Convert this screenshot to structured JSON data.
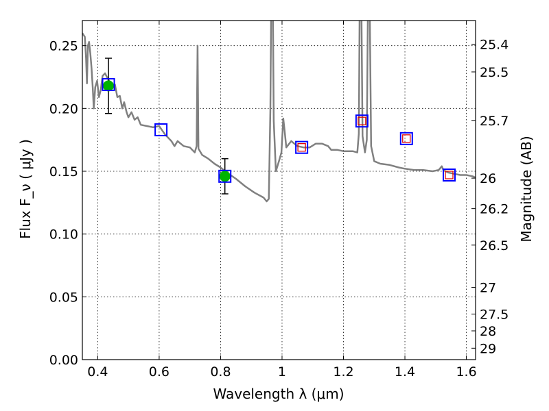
{
  "chart_data": {
    "type": "scatter",
    "xlabel": "Wavelength  λ (μm)",
    "ylabel_left": "Flux  F_ν  ( μJy )",
    "ylabel_right": "Magnitude (AB)",
    "xlim": [
      0.35,
      1.63
    ],
    "ylim": [
      0.0,
      0.27
    ],
    "grid": true,
    "x_ticks": [
      0.4,
      0.6,
      0.8,
      1.0,
      1.2,
      1.4,
      1.6
    ],
    "x_tick_labels": [
      "0.4",
      "0.6",
      "0.8",
      "1",
      "1.2",
      "1.4",
      "1.6"
    ],
    "y_ticks": [
      0.0,
      0.05,
      0.1,
      0.15,
      0.2,
      0.25
    ],
    "y_tick_labels": [
      "0.00",
      "0.05",
      "0.10",
      "0.15",
      "0.20",
      "0.25"
    ],
    "right_axis_ticks": [
      {
        "label": "25.4",
        "flux": 0.2512
      },
      {
        "label": "25.5",
        "flux": 0.2291
      },
      {
        "label": "25.7",
        "flux": 0.1905
      },
      {
        "label": "26",
        "flux": 0.1445
      },
      {
        "label": "26.2",
        "flux": 0.1202
      },
      {
        "label": "26.5",
        "flux": 0.0912
      },
      {
        "label": "27",
        "flux": 0.0575
      },
      {
        "label": "27.5",
        "flux": 0.0363
      },
      {
        "label": "28",
        "flux": 0.0229
      },
      {
        "label": "29",
        "flux": 0.0091
      }
    ],
    "model_spectrum": {
      "color": "#808080",
      "points": [
        [
          0.35,
          0.26
        ],
        [
          0.358,
          0.257
        ],
        [
          0.362,
          0.24
        ],
        [
          0.365,
          0.22
        ],
        [
          0.368,
          0.25
        ],
        [
          0.372,
          0.253
        ],
        [
          0.376,
          0.244
        ],
        [
          0.38,
          0.232
        ],
        [
          0.384,
          0.216
        ],
        [
          0.387,
          0.2
        ],
        [
          0.392,
          0.217
        ],
        [
          0.398,
          0.222
        ],
        [
          0.404,
          0.209
        ],
        [
          0.41,
          0.215
        ],
        [
          0.416,
          0.226
        ],
        [
          0.424,
          0.228
        ],
        [
          0.432,
          0.224
        ],
        [
          0.44,
          0.221
        ],
        [
          0.448,
          0.217
        ],
        [
          0.456,
          0.219
        ],
        [
          0.464,
          0.209
        ],
        [
          0.472,
          0.21
        ],
        [
          0.48,
          0.2
        ],
        [
          0.486,
          0.205
        ],
        [
          0.494,
          0.197
        ],
        [
          0.5,
          0.193
        ],
        [
          0.51,
          0.197
        ],
        [
          0.52,
          0.191
        ],
        [
          0.53,
          0.193
        ],
        [
          0.54,
          0.187
        ],
        [
          0.56,
          0.186
        ],
        [
          0.58,
          0.185
        ],
        [
          0.6,
          0.186
        ],
        [
          0.62,
          0.179
        ],
        [
          0.64,
          0.174
        ],
        [
          0.65,
          0.17
        ],
        [
          0.66,
          0.174
        ],
        [
          0.68,
          0.17
        ],
        [
          0.7,
          0.169
        ],
        [
          0.716,
          0.165
        ],
        [
          0.722,
          0.17
        ],
        [
          0.725,
          0.25
        ],
        [
          0.728,
          0.168
        ],
        [
          0.74,
          0.163
        ],
        [
          0.76,
          0.16
        ],
        [
          0.78,
          0.156
        ],
        [
          0.8,
          0.153
        ],
        [
          0.82,
          0.149
        ],
        [
          0.85,
          0.144
        ],
        [
          0.88,
          0.138
        ],
        [
          0.91,
          0.133
        ],
        [
          0.94,
          0.129
        ],
        [
          0.95,
          0.126
        ],
        [
          0.957,
          0.128
        ],
        [
          0.962,
          0.2
        ],
        [
          0.965,
          0.29
        ],
        [
          0.97,
          0.29
        ],
        [
          0.973,
          0.19
        ],
        [
          0.98,
          0.15
        ],
        [
          0.99,
          0.158
        ],
        [
          0.998,
          0.165
        ],
        [
          1.004,
          0.192
        ],
        [
          1.008,
          0.183
        ],
        [
          1.014,
          0.169
        ],
        [
          1.03,
          0.174
        ],
        [
          1.05,
          0.17
        ],
        [
          1.07,
          0.169
        ],
        [
          1.09,
          0.169
        ],
        [
          1.11,
          0.172
        ],
        [
          1.13,
          0.172
        ],
        [
          1.15,
          0.17
        ],
        [
          1.16,
          0.167
        ],
        [
          1.18,
          0.167
        ],
        [
          1.2,
          0.166
        ],
        [
          1.23,
          0.166
        ],
        [
          1.245,
          0.165
        ],
        [
          1.25,
          0.18
        ],
        [
          1.253,
          0.29
        ],
        [
          1.258,
          0.29
        ],
        [
          1.262,
          0.178
        ],
        [
          1.27,
          0.165
        ],
        [
          1.276,
          0.175
        ],
        [
          1.28,
          0.29
        ],
        [
          1.285,
          0.29
        ],
        [
          1.29,
          0.17
        ],
        [
          1.3,
          0.158
        ],
        [
          1.32,
          0.156
        ],
        [
          1.35,
          0.155
        ],
        [
          1.38,
          0.153
        ],
        [
          1.4,
          0.152
        ],
        [
          1.43,
          0.151
        ],
        [
          1.46,
          0.151
        ],
        [
          1.49,
          0.15
        ],
        [
          1.51,
          0.151
        ],
        [
          1.52,
          0.154
        ],
        [
          1.525,
          0.151
        ],
        [
          1.54,
          0.149
        ],
        [
          1.56,
          0.148
        ],
        [
          1.58,
          0.147
        ],
        [
          1.6,
          0.147
        ],
        [
          1.62,
          0.146
        ],
        [
          1.63,
          0.145
        ]
      ]
    },
    "observed_points": [
      {
        "x": 0.435,
        "y": 0.218,
        "yerr": 0.022,
        "color": "#00b400"
      },
      {
        "x": 0.814,
        "y": 0.146,
        "yerr": 0.014,
        "color": "#00b400"
      }
    ],
    "model_photometry": [
      {
        "x": 0.435,
        "y": 0.219,
        "color": "#0000ff"
      },
      {
        "x": 0.606,
        "y": 0.183,
        "color": "#0000ff"
      },
      {
        "x": 0.814,
        "y": 0.146,
        "color": "#0000ff"
      },
      {
        "x": 1.064,
        "y": 0.169,
        "color": "#0000ff"
      },
      {
        "x": 1.26,
        "y": 0.19,
        "color": "#0000ff"
      },
      {
        "x": 1.405,
        "y": 0.176,
        "color": "#0000ff"
      },
      {
        "x": 1.544,
        "y": 0.147,
        "color": "#0000ff"
      }
    ],
    "upper_limits": [
      {
        "x": 1.064,
        "y": 0.169,
        "color": "#e00000"
      },
      {
        "x": 1.26,
        "y": 0.19,
        "color": "#e00000"
      },
      {
        "x": 1.405,
        "y": 0.176,
        "color": "#e00000"
      },
      {
        "x": 1.544,
        "y": 0.147,
        "color": "#e00000"
      }
    ]
  }
}
